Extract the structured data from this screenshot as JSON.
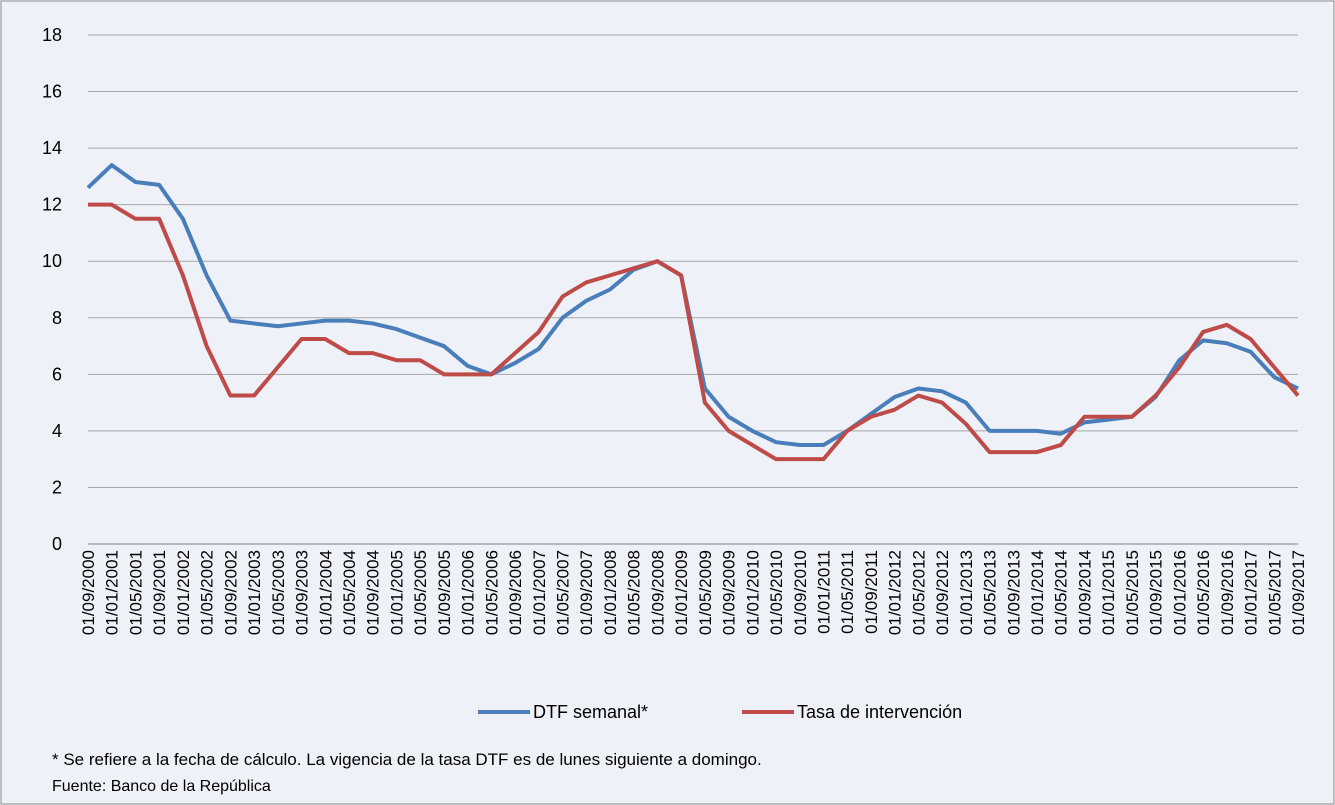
{
  "chart_data": {
    "type": "line",
    "categories": [
      "01/09/2000",
      "01/01/2001",
      "01/05/2001",
      "01/09/2001",
      "01/01/2002",
      "01/05/2002",
      "01/09/2002",
      "01/01/2003",
      "01/05/2003",
      "01/09/2003",
      "01/01/2004",
      "01/05/2004",
      "01/09/2004",
      "01/01/2005",
      "01/05/2005",
      "01/09/2005",
      "01/01/2006",
      "01/05/2006",
      "01/09/2006",
      "01/01/2007",
      "01/05/2007",
      "01/09/2007",
      "01/01/2008",
      "01/05/2008",
      "01/09/2008",
      "01/01/2009",
      "01/05/2009",
      "01/09/2009",
      "01/01/2010",
      "01/05/2010",
      "01/09/2010",
      "01/01/2011",
      "01/05/2011",
      "01/09/2011",
      "01/01/2012",
      "01/05/2012",
      "01/09/2012",
      "01/01/2013",
      "01/05/2013",
      "01/09/2013",
      "01/01/2014",
      "01/05/2014",
      "01/09/2014",
      "01/01/2015",
      "01/05/2015",
      "01/09/2015",
      "01/01/2016",
      "01/05/2016",
      "01/09/2016",
      "01/01/2017",
      "01/05/2017",
      "01/09/2017"
    ],
    "series": [
      {
        "name": "DTF semanal*",
        "color": "#4a7ebb",
        "values": [
          12.6,
          13.4,
          12.8,
          12.7,
          11.5,
          9.5,
          7.9,
          7.8,
          7.7,
          7.8,
          7.9,
          7.9,
          7.8,
          7.6,
          7.3,
          7.0,
          6.3,
          6.0,
          6.4,
          6.9,
          8.0,
          8.6,
          9.0,
          9.7,
          10.0,
          9.5,
          5.5,
          4.5,
          4.0,
          3.6,
          3.5,
          3.5,
          4.0,
          4.6,
          5.2,
          5.5,
          5.4,
          5.0,
          4.0,
          4.0,
          4.0,
          3.9,
          4.3,
          4.4,
          4.5,
          5.2,
          6.5,
          7.2,
          7.1,
          6.8,
          5.9,
          5.5
        ]
      },
      {
        "name": "Tasa de intervención",
        "color": "#be4b48",
        "values": [
          12,
          12,
          11.5,
          11.5,
          9.5,
          7.0,
          5.25,
          5.25,
          6.25,
          7.25,
          7.25,
          6.75,
          6.75,
          6.5,
          6.5,
          6.0,
          6.0,
          6.0,
          6.75,
          7.5,
          8.75,
          9.25,
          9.5,
          9.75,
          10.0,
          9.5,
          5.0,
          4.0,
          3.5,
          3.0,
          3.0,
          3.0,
          4.0,
          4.5,
          4.75,
          5.25,
          5.0,
          4.25,
          3.25,
          3.25,
          3.25,
          3.5,
          4.5,
          4.5,
          4.5,
          5.25,
          6.25,
          7.5,
          7.75,
          7.25,
          6.25,
          5.25
        ]
      }
    ],
    "ylim": [
      0,
      18
    ],
    "yticks": [
      0,
      2,
      4,
      6,
      8,
      10,
      12,
      14,
      16,
      18
    ],
    "grid": true,
    "footnote": "* Se refiere a la fecha de cálculo. La vigencia de la tasa DTF es de lunes siguiente a domingo.",
    "source": "Fuente: Banco de la República"
  }
}
